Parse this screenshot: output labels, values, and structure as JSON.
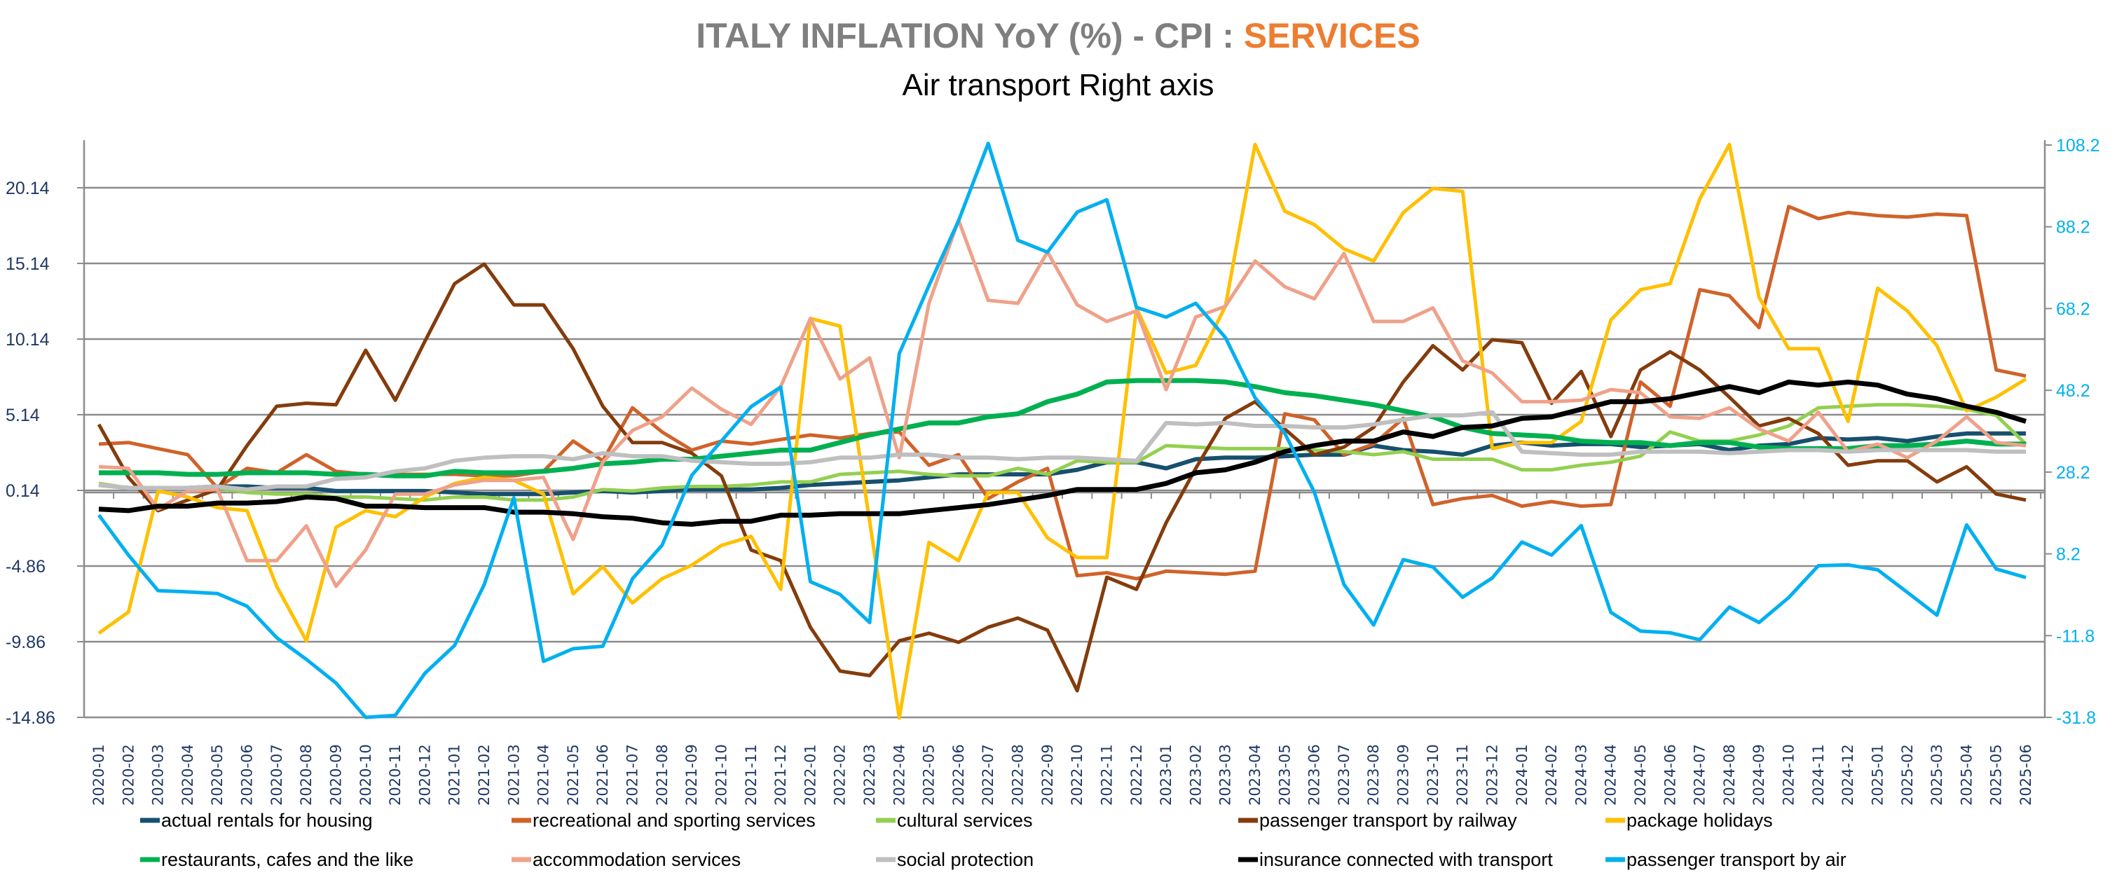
{
  "chart_data": {
    "type": "line",
    "title_main": "ITALY INFLATION YoY (%) - CPI : ",
    "title_highlight": "SERVICES",
    "subtitle": "Air transport Right axis",
    "colors": {
      "title_main": "#7F7F7F",
      "title_highlight": "#ED7D31",
      "left_axis": "#203864",
      "right_axis": "#00B0F0",
      "grid": "#8C8C8C"
    },
    "grid": true,
    "legend_position": "bottom",
    "y_left": {
      "ticks": [
        "20.14",
        "15.14",
        "10.14",
        "5.14",
        "0.14",
        "-4.86",
        "-9.86",
        "-14.86"
      ],
      "range": [
        -14.86,
        23.3
      ]
    },
    "y_right": {
      "ticks": [
        "108.2",
        "88.2",
        "68.2",
        "48.2",
        "28.2",
        "8.2",
        "-11.8",
        "-31.8"
      ],
      "range": [
        -31.8,
        109.4
      ]
    },
    "categories": [
      "2020-01",
      "2020-02",
      "2020-03",
      "2020-04",
      "2020-05",
      "2020-06",
      "2020-07",
      "2020-08",
      "2020-09",
      "2020-10",
      "2020-11",
      "2020-12",
      "2021-01",
      "2021-02",
      "2021-03",
      "2021-04",
      "2021-05",
      "2021-06",
      "2021-07",
      "2021-08",
      "2021-09",
      "2021-10",
      "2021-11",
      "2021-12",
      "2022-01",
      "2022-02",
      "2022-03",
      "2022-04",
      "2022-05",
      "2022-06",
      "2022-07",
      "2022-08",
      "2022-09",
      "2022-10",
      "2022-11",
      "2022-12",
      "2023-01",
      "2023-02",
      "2023-03",
      "2023-04",
      "2023-05",
      "2023-06",
      "2023-07",
      "2023-08",
      "2023-09",
      "2023-10",
      "2023-11",
      "2023-12",
      "2024-01",
      "2024-02",
      "2024-03",
      "2024-04",
      "2024-05",
      "2024-06",
      "2024-07",
      "2024-08",
      "2024-09",
      "2024-10",
      "2024-11",
      "2024-12",
      "2025-01",
      "2025-02",
      "2025-03",
      "2025-04",
      "2025-05",
      "2025-06"
    ],
    "series": [
      {
        "name": "actual rentals for housing",
        "color": "#17506E",
        "axis": "left",
        "values": [
          0.5,
          0.3,
          0.3,
          0.3,
          0.4,
          0.4,
          0.3,
          0.3,
          0.1,
          0.1,
          0.1,
          0.1,
          0.0,
          -0.1,
          -0.1,
          -0.1,
          0.0,
          0.1,
          0.0,
          0.1,
          0.2,
          0.2,
          0.2,
          0.3,
          0.5,
          0.6,
          0.7,
          0.8,
          1.0,
          1.2,
          1.2,
          1.2,
          1.2,
          1.5,
          2.0,
          2.0,
          1.6,
          2.2,
          2.3,
          2.3,
          2.4,
          2.5,
          2.5,
          3.1,
          2.8,
          2.7,
          2.5,
          3.1,
          3.3,
          3.1,
          3.2,
          3.2,
          3.0,
          3.1,
          3.2,
          2.8,
          3.1,
          3.2,
          3.6,
          3.5,
          3.6,
          3.4,
          3.7,
          3.9,
          3.9,
          3.9
        ]
      },
      {
        "name": "recreational and sporting services",
        "color": "#D0622A",
        "axis": "left",
        "values": [
          3.2,
          3.3,
          2.9,
          2.5,
          0.3,
          1.6,
          1.3,
          2.5,
          1.4,
          1.2,
          1.2,
          1.2,
          1.2,
          1.1,
          1.1,
          1.4,
          3.4,
          2.1,
          5.6,
          4.0,
          2.8,
          3.4,
          3.2,
          3.5,
          3.8,
          3.6,
          3.9,
          4.0,
          1.8,
          2.5,
          -0.4,
          0.7,
          1.6,
          -5.5,
          -5.3,
          -5.7,
          -5.2,
          -5.3,
          -5.4,
          -5.2,
          5.2,
          4.8,
          2.5,
          3.2,
          4.9,
          -0.8,
          -0.4,
          -0.2,
          -0.9,
          -0.6,
          -0.9,
          -0.8,
          7.3,
          5.7,
          13.4,
          13.0,
          10.9,
          18.9,
          18.1,
          18.5,
          18.3,
          18.2,
          18.4,
          18.3,
          8.1,
          7.7
        ]
      },
      {
        "name": "cultural services",
        "color": "#92D050",
        "axis": "left",
        "values": [
          0.6,
          0.3,
          0.3,
          0.3,
          0.3,
          0.0,
          -0.1,
          -0.1,
          -0.3,
          -0.3,
          -0.4,
          -0.5,
          -0.3,
          -0.3,
          -0.5,
          -0.5,
          -0.3,
          0.2,
          0.1,
          0.3,
          0.4,
          0.4,
          0.5,
          0.7,
          0.7,
          1.2,
          1.3,
          1.4,
          1.2,
          1.1,
          1.1,
          1.6,
          1.2,
          2.1,
          2.0,
          2.0,
          3.1,
          3.0,
          2.9,
          2.9,
          2.9,
          2.8,
          2.7,
          2.5,
          2.7,
          2.2,
          2.2,
          2.2,
          1.5,
          1.5,
          1.8,
          2.0,
          2.4,
          4.0,
          3.4,
          3.4,
          3.8,
          4.4,
          5.6,
          5.7,
          5.8,
          5.8,
          5.7,
          5.5,
          5.1,
          3.2
        ]
      },
      {
        "name": "passenger transport by railway",
        "color": "#843C0C",
        "axis": "left",
        "values": [
          4.5,
          1.0,
          -1.2,
          -0.5,
          0.2,
          3.1,
          5.7,
          5.9,
          5.8,
          9.4,
          6.1,
          10.0,
          13.8,
          15.1,
          12.4,
          12.4,
          9.5,
          5.7,
          3.3,
          3.3,
          2.6,
          1.1,
          -3.8,
          -4.5,
          -8.9,
          -11.8,
          -12.1,
          -9.8,
          -9.3,
          -9.9,
          -8.9,
          -8.3,
          -9.1,
          -13.1,
          -5.6,
          -6.4,
          -2.0,
          1.6,
          4.9,
          6.0,
          4.2,
          2.5,
          3.0,
          4.3,
          7.3,
          9.7,
          8.1,
          10.1,
          9.9,
          5.9,
          8.0,
          3.7,
          8.1,
          9.3,
          8.1,
          6.3,
          4.4,
          4.9,
          3.9,
          1.8,
          2.1,
          2.1,
          0.7,
          1.7,
          -0.1,
          -0.5
        ]
      },
      {
        "name": "package holidays",
        "color": "#FFC000",
        "axis": "left",
        "values": [
          -9.3,
          -7.9,
          0.1,
          -0.3,
          -1.0,
          -1.2,
          -6.2,
          -9.8,
          -2.3,
          -1.2,
          -1.6,
          -0.3,
          0.6,
          1.0,
          0.8,
          -0.1,
          -6.7,
          -4.9,
          -7.3,
          -5.7,
          -4.8,
          -3.5,
          -2.9,
          -6.4,
          11.5,
          11.0,
          -1.9,
          -14.9,
          -3.3,
          -4.5,
          0.0,
          0.0,
          -3.0,
          -4.3,
          -4.3,
          12.2,
          7.9,
          8.4,
          12.3,
          23.0,
          18.6,
          17.7,
          16.1,
          15.3,
          18.5,
          20.1,
          19.9,
          2.9,
          3.3,
          3.3,
          4.7,
          11.4,
          13.4,
          13.8,
          19.4,
          23.0,
          12.9,
          9.5,
          9.5,
          4.7,
          13.5,
          12.0,
          9.7,
          5.4,
          6.3,
          7.5
        ]
      },
      {
        "name": "restaurants, cafes and the like",
        "color": "#00B050",
        "axis": "left",
        "values": [
          1.3,
          1.3,
          1.3,
          1.2,
          1.2,
          1.3,
          1.3,
          1.3,
          1.2,
          1.2,
          1.1,
          1.1,
          1.4,
          1.3,
          1.3,
          1.4,
          1.6,
          1.9,
          2.0,
          2.2,
          2.2,
          2.4,
          2.6,
          2.8,
          2.8,
          3.3,
          3.8,
          4.2,
          4.6,
          4.6,
          5.0,
          5.2,
          6.0,
          6.5,
          7.3,
          7.4,
          7.4,
          7.4,
          7.3,
          7.0,
          6.6,
          6.4,
          6.1,
          5.8,
          5.4,
          5.0,
          4.3,
          3.9,
          3.8,
          3.7,
          3.4,
          3.3,
          3.3,
          3.1,
          3.3,
          3.3,
          3.0,
          2.9,
          2.9,
          2.9,
          3.1,
          3.1,
          3.2,
          3.4,
          3.2,
          3.2
        ]
      },
      {
        "name": "accommodation services",
        "color": "#EFA18A",
        "axis": "left",
        "values": [
          1.7,
          1.6,
          -1.1,
          0.1,
          0.2,
          -4.5,
          -4.5,
          -2.2,
          -6.2,
          -3.8,
          -0.1,
          -0.1,
          0.5,
          0.8,
          0.8,
          1.0,
          -3.1,
          2.0,
          4.1,
          5.0,
          6.9,
          5.5,
          4.5,
          7.0,
          11.5,
          7.5,
          8.9,
          2.3,
          12.5,
          18.0,
          12.7,
          12.5,
          15.9,
          12.4,
          11.3,
          12.0,
          6.8,
          11.6,
          12.3,
          15.3,
          13.6,
          12.8,
          15.8,
          11.3,
          11.3,
          12.2,
          8.7,
          7.9,
          6.0,
          6.0,
          6.1,
          6.8,
          6.6,
          5.0,
          4.9,
          5.6,
          4.2,
          3.4,
          5.3,
          2.7,
          3.2,
          2.3,
          3.4,
          5.0,
          3.3,
          3.1
        ]
      },
      {
        "name": "social protection",
        "color": "#BFBFBF",
        "axis": "left",
        "values": [
          0.5,
          0.3,
          0.3,
          0.3,
          0.4,
          0.2,
          0.4,
          0.4,
          0.9,
          1.0,
          1.4,
          1.6,
          2.1,
          2.3,
          2.4,
          2.4,
          2.2,
          2.6,
          2.4,
          2.4,
          2.1,
          2.0,
          1.9,
          1.9,
          2.0,
          2.3,
          2.3,
          2.5,
          2.5,
          2.3,
          2.3,
          2.2,
          2.3,
          2.3,
          2.2,
          2.1,
          4.6,
          4.5,
          4.6,
          4.4,
          4.4,
          4.3,
          4.3,
          4.5,
          4.8,
          5.1,
          5.1,
          5.3,
          2.7,
          2.6,
          2.5,
          2.5,
          2.7,
          2.7,
          2.7,
          2.6,
          2.7,
          2.8,
          2.8,
          2.7,
          2.8,
          2.8,
          2.8,
          2.8,
          2.7,
          2.7
        ]
      },
      {
        "name": "insurance connected with transport",
        "color": "#000000",
        "axis": "left",
        "values": [
          -1.1,
          -1.2,
          -0.9,
          -0.9,
          -0.7,
          -0.7,
          -0.6,
          -0.3,
          -0.4,
          -0.9,
          -0.9,
          -1.0,
          -1.0,
          -1.0,
          -1.3,
          -1.3,
          -1.4,
          -1.6,
          -1.7,
          -2.0,
          -2.1,
          -1.9,
          -1.9,
          -1.5,
          -1.5,
          -1.4,
          -1.4,
          -1.4,
          -1.2,
          -1.0,
          -0.8,
          -0.5,
          -0.2,
          0.2,
          0.2,
          0.2,
          0.6,
          1.3,
          1.5,
          2.0,
          2.7,
          3.1,
          3.4,
          3.4,
          4.0,
          3.7,
          4.3,
          4.4,
          4.9,
          5.0,
          5.5,
          6.0,
          6.0,
          6.2,
          6.6,
          7.0,
          6.6,
          7.3,
          7.1,
          7.3,
          7.1,
          6.5,
          6.2,
          5.7,
          5.3,
          4.7
        ]
      },
      {
        "name": "passenger transport by air",
        "color": "#00B0F0",
        "axis": "right",
        "values": [
          17.7,
          7.9,
          -0.8,
          -1.1,
          -1.5,
          -4.6,
          -12.3,
          -17.6,
          -23.4,
          -31.8,
          -31.3,
          -21.0,
          -14.2,
          0.7,
          21.9,
          -18.1,
          -15.0,
          -14.4,
          2.1,
          10.3,
          27.4,
          35.8,
          44.2,
          49.0,
          1.4,
          -1.7,
          -8.6,
          57.2,
          73.8,
          89.7,
          108.6,
          84.9,
          82.0,
          91.8,
          94.8,
          68.5,
          66.1,
          69.5,
          61.1,
          46.4,
          37.7,
          23.3,
          0.7,
          -9.2,
          6.8,
          5.0,
          -2.4,
          2.3,
          11.1,
          7.9,
          15.1,
          -6.1,
          -10.7,
          -11.1,
          -12.8,
          -4.8,
          -8.6,
          -2.5,
          5.3,
          5.5,
          4.3,
          -1.2,
          -6.8,
          15.3,
          4.5,
          2.4
        ]
      }
    ]
  }
}
